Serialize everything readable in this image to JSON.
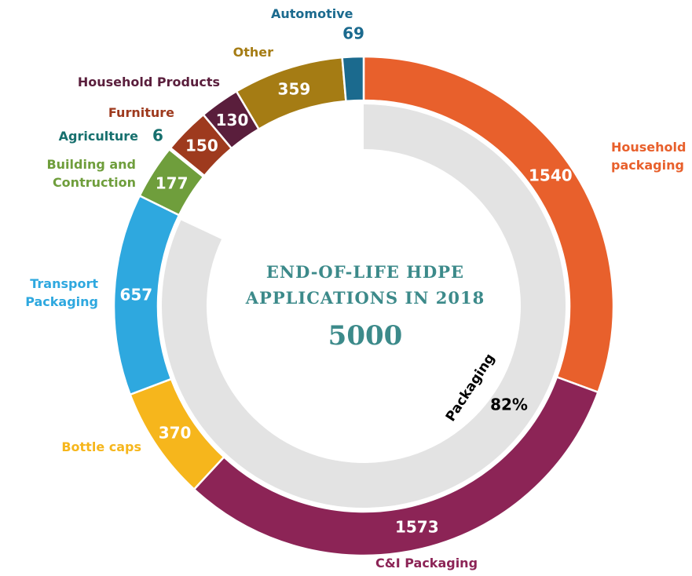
{
  "chart_data": {
    "type": "donut",
    "title": "END-OF-LIFE HDPE APPLICATIONS IN 2018",
    "total": 5000,
    "categories": [
      "Household packaging",
      "C&I Packaging",
      "Bottle caps",
      "Transport Packaging",
      "Building and Contruction",
      "Agriculture",
      "Furniture",
      "Household Products",
      "Other",
      "Automotive"
    ],
    "values": [
      1540,
      1573,
      370,
      657,
      177,
      6,
      150,
      130,
      359,
      69
    ],
    "colors": [
      "#e8602c",
      "#8c2456",
      "#f6b61c",
      "#2ea8df",
      "#6f9e3c",
      "#17706e",
      "#9e3a1e",
      "#5a1e3c",
      "#a57c14",
      "#1b6a8e"
    ],
    "inner": {
      "name": "Packaging",
      "value": 82,
      "value_label": "82%",
      "color": "#e3e3e3"
    }
  }
}
